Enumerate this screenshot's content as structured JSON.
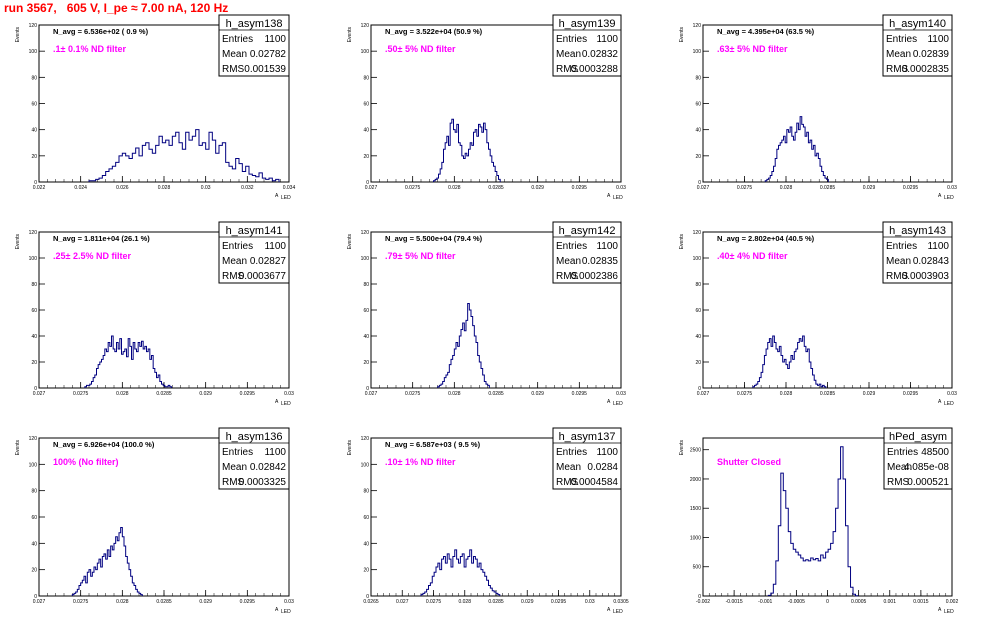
{
  "title": "run 3567,   605 V, I_pe ≈ 7.00 nA, 120 Hz",
  "colors": {
    "title": "#ff0000",
    "note": "#ff00ff",
    "hist": "#000080",
    "axis": "#000000"
  },
  "chart_data": [
    {
      "type": "histogram",
      "name": "h_asym138",
      "ylabel": "Events",
      "xlabel": "A",
      "xlabel_sub": "LED",
      "xlim": [
        0.022,
        0.034
      ],
      "ylim": [
        0,
        120
      ],
      "xticks": [
        "0.022",
        "0.024",
        "0.026",
        "0.028",
        "0.03",
        "0.032",
        "0.034"
      ],
      "yticks": [
        "0",
        "20",
        "40",
        "60",
        "80",
        "100",
        "120"
      ],
      "stats": {
        "Entries": "1100",
        "Mean": "0.02782",
        "RMS": "0.001539"
      },
      "navg": "N_avg = 6.536e+02 ( 0.9 %)",
      "note": ".1± 0.1% ND filter",
      "bins": {
        "start": 0.0244,
        "width": 0.00016,
        "counts": [
          1,
          1,
          2,
          3,
          5,
          8,
          10,
          12,
          15,
          20,
          22,
          20,
          18,
          22,
          26,
          20,
          28,
          30,
          25,
          22,
          28,
          35,
          30,
          32,
          28,
          35,
          38,
          30,
          25,
          38,
          32,
          35,
          40,
          28,
          30,
          25,
          38,
          32,
          22,
          28,
          30,
          15,
          12,
          10,
          18,
          14,
          8,
          12,
          6,
          5,
          4,
          7,
          3,
          2,
          3,
          1,
          2
        ]
      }
    },
    {
      "type": "histogram",
      "name": "h_asym139",
      "ylabel": "Events",
      "xlabel": "A",
      "xlabel_sub": "LED",
      "xlim": [
        0.027,
        0.03
      ],
      "ylim": [
        0,
        120
      ],
      "xticks": [
        "0.027",
        "0.0275",
        "0.028",
        "0.0285",
        "0.029",
        "0.0295",
        "0.03"
      ],
      "yticks": [
        "0",
        "20",
        "40",
        "60",
        "80",
        "100",
        "120"
      ],
      "stats": {
        "Entries": "1100",
        "Mean": "0.02832",
        "RMS": "0.0003288"
      },
      "navg": "N_avg = 3.522e+04 (50.9 %)",
      "note": ".50± 5% ND filter",
      "bins": {
        "start": 0.02775,
        "width": 2e-05,
        "counts": [
          1,
          2,
          3,
          6,
          10,
          15,
          25,
          30,
          35,
          28,
          45,
          48,
          40,
          38,
          44,
          30,
          28,
          20,
          18,
          22,
          20,
          25,
          30,
          28,
          38,
          40,
          35,
          44,
          42,
          38,
          45,
          40,
          30,
          25,
          20,
          15,
          12,
          8,
          5,
          2
        ]
      }
    },
    {
      "type": "histogram",
      "name": "h_asym140",
      "ylabel": "Events",
      "xlabel": "A",
      "xlabel_sub": "LED",
      "xlim": [
        0.027,
        0.03
      ],
      "ylim": [
        0,
        120
      ],
      "xticks": [
        "0.027",
        "0.0275",
        "0.028",
        "0.0285",
        "0.029",
        "0.0295",
        "0.03"
      ],
      "yticks": [
        "0",
        "20",
        "40",
        "60",
        "80",
        "100",
        "120"
      ],
      "stats": {
        "Entries": "1100",
        "Mean": "0.02839",
        "RMS": "0.0002835"
      },
      "navg": "N_avg = 4.395e+04 (63.5 %)",
      "note": ".63± 5% ND filter",
      "bins": {
        "start": 0.02775,
        "width": 2e-05,
        "counts": [
          1,
          2,
          3,
          5,
          8,
          12,
          18,
          25,
          28,
          30,
          32,
          35,
          30,
          40,
          38,
          42,
          35,
          32,
          38,
          45,
          40,
          50,
          44,
          42,
          35,
          38,
          30,
          32,
          25,
          28,
          20,
          22,
          18,
          12,
          8,
          5,
          3,
          2
        ]
      }
    },
    {
      "type": "histogram",
      "name": "h_asym141",
      "ylabel": "Events",
      "xlabel": "A",
      "xlabel_sub": "LED",
      "xlim": [
        0.027,
        0.03
      ],
      "ylim": [
        0,
        120
      ],
      "xticks": [
        "0.027",
        "0.0275",
        "0.028",
        "0.0285",
        "0.029",
        "0.0295",
        "0.03"
      ],
      "yticks": [
        "0",
        "20",
        "40",
        "60",
        "80",
        "100",
        "120"
      ],
      "stats": {
        "Entries": "1100",
        "Mean": "0.02827",
        "RMS": "0.0003677"
      },
      "navg": "N_avg = 1.811e+04 (26.1 %)",
      "note": ".25± 2.5% ND filter",
      "bins": {
        "start": 0.02755,
        "width": 2e-05,
        "counts": [
          1,
          2,
          2,
          3,
          5,
          8,
          10,
          15,
          18,
          20,
          22,
          25,
          30,
          28,
          35,
          32,
          40,
          30,
          28,
          35,
          30,
          38,
          26,
          28,
          30,
          24,
          38,
          32,
          22,
          35,
          30,
          28,
          35,
          32,
          36,
          30,
          32,
          28,
          30,
          22,
          25,
          15,
          12,
          8,
          10,
          5,
          3,
          2,
          1,
          1,
          2,
          1
        ]
      }
    },
    {
      "type": "histogram",
      "name": "h_asym142",
      "ylabel": "Events",
      "xlabel": "A",
      "xlabel_sub": "LED",
      "xlim": [
        0.027,
        0.03
      ],
      "ylim": [
        0,
        120
      ],
      "xticks": [
        "0.027",
        "0.0275",
        "0.028",
        "0.0285",
        "0.029",
        "0.0295",
        "0.03"
      ],
      "yticks": [
        "0",
        "20",
        "40",
        "60",
        "80",
        "100",
        "120"
      ],
      "stats": {
        "Entries": "1100",
        "Mean": "0.02835",
        "RMS": "0.0002386"
      },
      "navg": "N_avg = 5.500e+04 (79.4 %)",
      "note": ".79± 5% ND filter",
      "bins": {
        "start": 0.0278,
        "width": 2e-05,
        "counts": [
          1,
          2,
          3,
          5,
          8,
          10,
          12,
          18,
          22,
          25,
          30,
          35,
          32,
          40,
          45,
          50,
          44,
          52,
          65,
          60,
          55,
          48,
          40,
          35,
          25,
          20,
          15,
          10,
          5,
          3,
          2
        ]
      }
    },
    {
      "type": "histogram",
      "name": "h_asym143",
      "ylabel": "Events",
      "xlabel": "A",
      "xlabel_sub": "LED",
      "xlim": [
        0.027,
        0.03
      ],
      "ylim": [
        0,
        120
      ],
      "xticks": [
        "0.027",
        "0.0275",
        "0.028",
        "0.0285",
        "0.029",
        "0.0295",
        "0.03"
      ],
      "yticks": [
        "0",
        "20",
        "40",
        "60",
        "80",
        "100",
        "120"
      ],
      "stats": {
        "Entries": "1100",
        "Mean": "0.02843",
        "RMS": "0.0003903"
      },
      "navg": "N_avg = 2.802e+04 (40.5 %)",
      "note": ".40± 4% ND filter",
      "bins": {
        "start": 0.0276,
        "width": 2e-05,
        "counts": [
          1,
          2,
          3,
          5,
          8,
          12,
          18,
          25,
          30,
          35,
          38,
          32,
          40,
          35,
          30,
          28,
          32,
          25,
          20,
          22,
          18,
          15,
          20,
          25,
          22,
          28,
          30,
          35,
          38,
          36,
          40,
          32,
          28,
          30,
          20,
          15,
          10,
          6,
          3,
          2,
          3,
          1,
          2,
          1
        ]
      }
    },
    {
      "type": "histogram",
      "name": "h_asym136",
      "ylabel": "Events",
      "xlabel": "A",
      "xlabel_sub": "LED",
      "xlim": [
        0.027,
        0.03
      ],
      "ylim": [
        0,
        120
      ],
      "xticks": [
        "0.027",
        "0.0275",
        "0.028",
        "0.0285",
        "0.029",
        "0.0295",
        "0.03"
      ],
      "yticks": [
        "0",
        "20",
        "40",
        "60",
        "80",
        "100",
        "120"
      ],
      "stats": {
        "Entries": "1100",
        "Mean": "0.02842",
        "RMS": "0.0003325"
      },
      "navg": "N_avg = 6.926e+04 (100.0 %)",
      "note": "100% (No filter)",
      "bins": {
        "start": 0.0274,
        "width": 2e-05,
        "counts": [
          1,
          2,
          3,
          5,
          8,
          10,
          12,
          15,
          10,
          18,
          20,
          15,
          18,
          22,
          20,
          25,
          28,
          22,
          30,
          32,
          28,
          35,
          30,
          38,
          35,
          40,
          45,
          42,
          48,
          52,
          45,
          38,
          30,
          25,
          20,
          15,
          10,
          8,
          5,
          3,
          2,
          1
        ]
      }
    },
    {
      "type": "histogram",
      "name": "h_asym137",
      "ylabel": "Events",
      "xlabel": "A",
      "xlabel_sub": "LED",
      "xlim": [
        0.0265,
        0.0305
      ],
      "ylim": [
        0,
        120
      ],
      "xticks": [
        "0.0265",
        "0.027",
        "0.0275",
        "0.028",
        "0.0285",
        "0.029",
        "0.0295",
        "0.03",
        "0.0305"
      ],
      "yticks": [
        "0",
        "20",
        "40",
        "60",
        "80",
        "100",
        "120"
      ],
      "stats": {
        "Entries": "1100",
        "Mean": "0.0284",
        "RMS": "0.0004584"
      },
      "navg": "N_avg = 6.587e+03 ( 9.5 %)",
      "note": ".10± 1% ND filter",
      "bins": {
        "start": 0.0273,
        "width": 3e-05,
        "counts": [
          1,
          2,
          3,
          5,
          8,
          10,
          15,
          18,
          22,
          25,
          20,
          28,
          30,
          25,
          32,
          28,
          22,
          30,
          35,
          28,
          25,
          30,
          32,
          22,
          28,
          30,
          35,
          25,
          30,
          28,
          22,
          25,
          20,
          18,
          15,
          12,
          8,
          6,
          4,
          3,
          2,
          1
        ]
      }
    },
    {
      "type": "histogram",
      "name": "hPed_asym",
      "ylabel": "Events",
      "xlabel": "A",
      "xlabel_sub": "LED",
      "xlim": [
        -0.002,
        0.002
      ],
      "ylim": [
        0,
        2700
      ],
      "xticks": [
        "-0.002",
        "-0.0015",
        "-0.001",
        "-0.0005",
        "0",
        "0.0005",
        "0.001",
        "0.0015",
        "0.002"
      ],
      "yticks": [
        "0",
        "500",
        "1000",
        "1500",
        "2000",
        "2500"
      ],
      "stats": {
        "Entries": "48500",
        "Mean": "4.085e-08",
        "RMS": "0.000521"
      },
      "navg": "",
      "note": "Shutter Closed",
      "bins": {
        "start": -0.00095,
        "width": 4e-05,
        "counts": [
          10,
          50,
          200,
          600,
          1200,
          2100,
          1800,
          1500,
          1100,
          900,
          800,
          750,
          700,
          650,
          600,
          620,
          600,
          650,
          620,
          640,
          600,
          700,
          650,
          750,
          800,
          900,
          1100,
          1500,
          2000,
          2550,
          2000,
          1200,
          500,
          150,
          30,
          5
        ]
      }
    }
  ]
}
